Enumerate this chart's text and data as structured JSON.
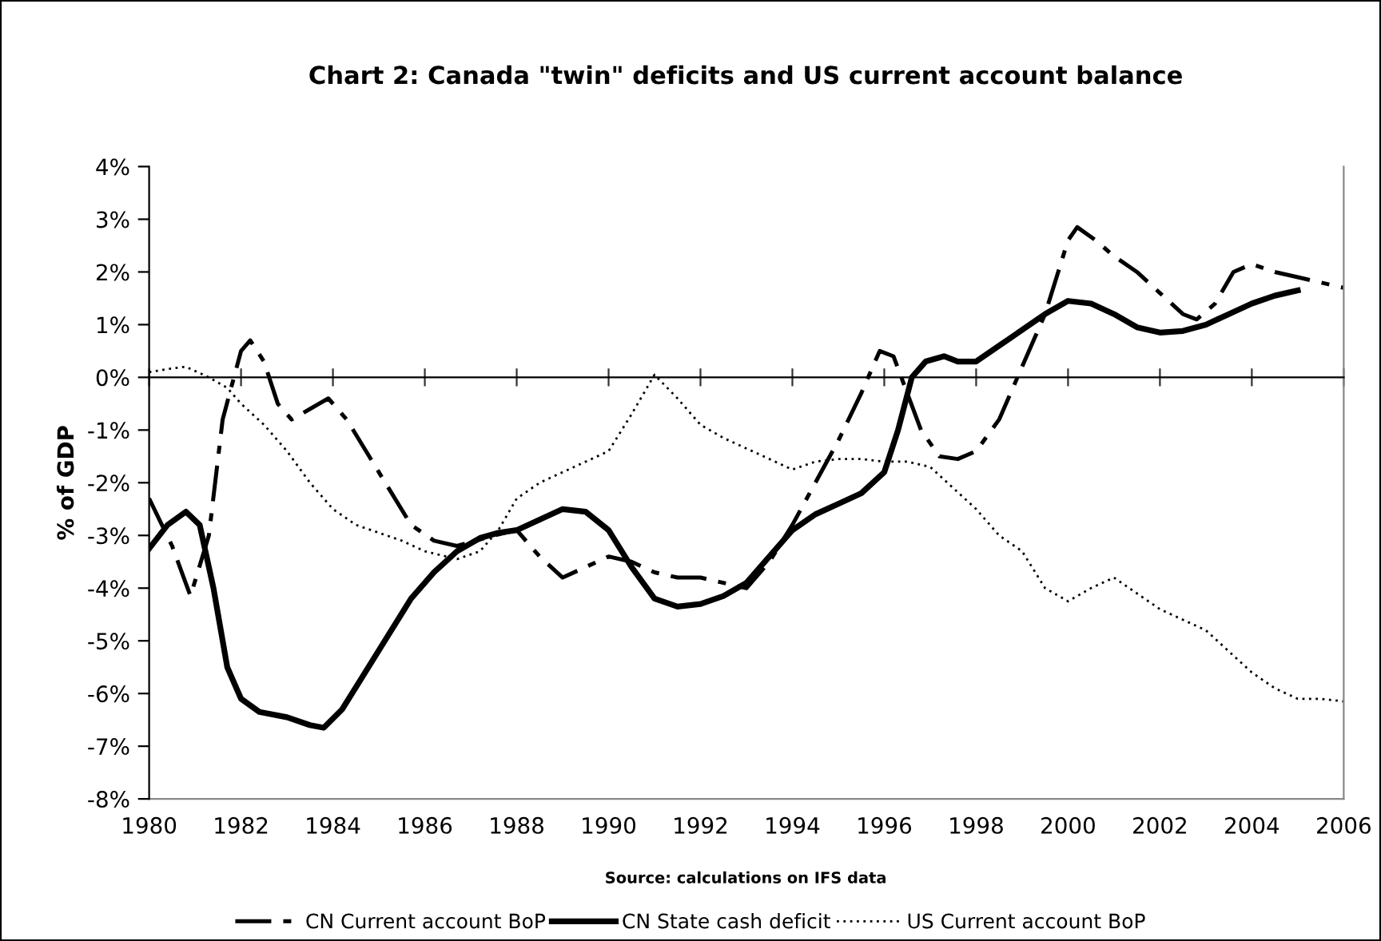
{
  "chart_data": {
    "type": "line",
    "title": "Chart 2: Canada \"twin\" deficits and US current account balance",
    "ylabel": "% of GDP",
    "annotations": [
      "Source: calculations on IFS data"
    ],
    "xlim": [
      1980,
      2006
    ],
    "xticks": [
      1980,
      1982,
      1984,
      1986,
      1988,
      1990,
      1992,
      1994,
      1996,
      1998,
      2000,
      2002,
      2004,
      2006
    ],
    "ylim": [
      -8,
      4
    ],
    "yticks": [
      {
        "value": -8,
        "label": "-8%"
      },
      {
        "value": -7,
        "label": "-7%"
      },
      {
        "value": -6,
        "label": "-6%"
      },
      {
        "value": -5,
        "label": "-5%"
      },
      {
        "value": -4,
        "label": "-4%"
      },
      {
        "value": -3,
        "label": "-3%"
      },
      {
        "value": -2,
        "label": "-2%"
      },
      {
        "value": -1,
        "label": "-1%"
      },
      {
        "value": 0,
        "label": "0%"
      },
      {
        "value": 1,
        "label": "1%"
      },
      {
        "value": 2,
        "label": "2%"
      },
      {
        "value": 3,
        "label": "3%"
      },
      {
        "value": 4,
        "label": "4%"
      }
    ],
    "legend": "bottom",
    "marker": "none",
    "series": [
      {
        "name": "CN Current account BoP",
        "color": "#000000",
        "line_style": "dashed",
        "x": [
          1980,
          1980.5,
          1980.9,
          1981.3,
          1981.6,
          1982.0,
          1982.2,
          1982.5,
          1982.8,
          1983.1,
          1983.5,
          1983.9,
          1984.3,
          1985,
          1985.7,
          1986.2,
          1986.7,
          1987.5,
          1988,
          1988.5,
          1989,
          1989.5,
          1990,
          1990.5,
          1991,
          1991.5,
          1992,
          1992.5,
          1993,
          1993.5,
          1994,
          1994.5,
          1995,
          1995.5,
          1995.9,
          1996.2,
          1996.5,
          1996.8,
          1997.2,
          1997.6,
          1998,
          1998.5,
          1999,
          1999.5,
          2000,
          2000.2,
          2000.6,
          2001,
          2001.5,
          2002,
          2002.5,
          2002.8,
          2003.2,
          2003.6,
          2004,
          2004.5,
          2005,
          2006
        ],
        "values": [
          -2.3,
          -3.2,
          -4.15,
          -3.0,
          -0.8,
          0.5,
          0.7,
          0.3,
          -0.5,
          -0.8,
          -0.6,
          -0.4,
          -0.8,
          -1.8,
          -2.8,
          -3.1,
          -3.2,
          -3.0,
          -2.9,
          -3.4,
          -3.8,
          -3.6,
          -3.4,
          -3.5,
          -3.7,
          -3.8,
          -3.8,
          -3.9,
          -4.0,
          -3.5,
          -2.8,
          -2.0,
          -1.2,
          -0.3,
          0.5,
          0.4,
          -0.3,
          -1.0,
          -1.5,
          -1.55,
          -1.4,
          -0.8,
          0.2,
          1.2,
          2.6,
          2.85,
          2.6,
          2.3,
          2.0,
          1.6,
          1.2,
          1.1,
          1.4,
          2.0,
          2.15,
          2.0,
          1.9,
          1.7
        ]
      },
      {
        "name": "CN State cash deficit",
        "color": "#000000",
        "line_style": "solid",
        "x": [
          1980,
          1980.4,
          1980.8,
          1981.1,
          1981.4,
          1981.7,
          1982,
          1982.4,
          1983,
          1983.5,
          1983.8,
          1984.2,
          1984.7,
          1985.2,
          1985.7,
          1986.2,
          1986.7,
          1987.2,
          1987.6,
          1988,
          1988.5,
          1989,
          1989.5,
          1990,
          1990.5,
          1991,
          1991.5,
          1992,
          1992.5,
          1993,
          1993.5,
          1994,
          1994.5,
          1995,
          1995.5,
          1996,
          1996.3,
          1996.6,
          1996.9,
          1997.3,
          1997.6,
          1998,
          1998.5,
          1999,
          1999.5,
          2000,
          2000.5,
          2001,
          2001.5,
          2002,
          2002.5,
          2003,
          2003.5,
          2004,
          2004.5,
          2005
        ],
        "values": [
          -3.25,
          -2.8,
          -2.55,
          -2.8,
          -4.0,
          -5.5,
          -6.1,
          -6.35,
          -6.45,
          -6.6,
          -6.65,
          -6.3,
          -5.6,
          -4.9,
          -4.2,
          -3.7,
          -3.3,
          -3.05,
          -2.95,
          -2.9,
          -2.7,
          -2.5,
          -2.55,
          -2.9,
          -3.6,
          -4.2,
          -4.35,
          -4.3,
          -4.15,
          -3.9,
          -3.4,
          -2.9,
          -2.6,
          -2.4,
          -2.2,
          -1.8,
          -1.0,
          0.0,
          0.3,
          0.4,
          0.3,
          0.3,
          0.6,
          0.9,
          1.2,
          1.45,
          1.4,
          1.2,
          0.95,
          0.85,
          0.88,
          1.0,
          1.2,
          1.4,
          1.55,
          1.65
        ]
      },
      {
        "name": "US Current account BoP",
        "color": "#000000",
        "line_style": "dotted",
        "x": [
          1980,
          1980.5,
          1980.8,
          1981.3,
          1981.7,
          1982,
          1982.5,
          1983,
          1983.5,
          1984,
          1984.5,
          1985,
          1985.5,
          1986,
          1986.7,
          1987.2,
          1987.6,
          1988,
          1988.5,
          1989,
          1989.5,
          1990,
          1990.5,
          1991,
          1991.5,
          1992,
          1992.5,
          1993,
          1993.5,
          1994,
          1994.5,
          1995,
          1995.5,
          1996,
          1996.5,
          1997,
          1997.5,
          1998,
          1998.5,
          1999,
          1999.5,
          2000,
          2000.5,
          2001,
          2001.5,
          2002,
          2002.5,
          2003,
          2003.5,
          2004,
          2004.5,
          2005,
          2005.5,
          2006
        ],
        "values": [
          0.1,
          0.17,
          0.2,
          0.0,
          -0.2,
          -0.5,
          -0.9,
          -1.4,
          -2.0,
          -2.5,
          -2.8,
          -2.95,
          -3.1,
          -3.3,
          -3.45,
          -3.3,
          -2.9,
          -2.3,
          -2.0,
          -1.8,
          -1.6,
          -1.4,
          -0.7,
          0.05,
          -0.4,
          -0.9,
          -1.15,
          -1.35,
          -1.55,
          -1.75,
          -1.6,
          -1.55,
          -1.55,
          -1.6,
          -1.6,
          -1.7,
          -2.1,
          -2.5,
          -3.0,
          -3.3,
          -4.0,
          -4.25,
          -4.0,
          -3.8,
          -4.1,
          -4.4,
          -4.6,
          -4.8,
          -5.2,
          -5.6,
          -5.9,
          -6.1,
          -6.1,
          -6.15
        ]
      }
    ]
  }
}
